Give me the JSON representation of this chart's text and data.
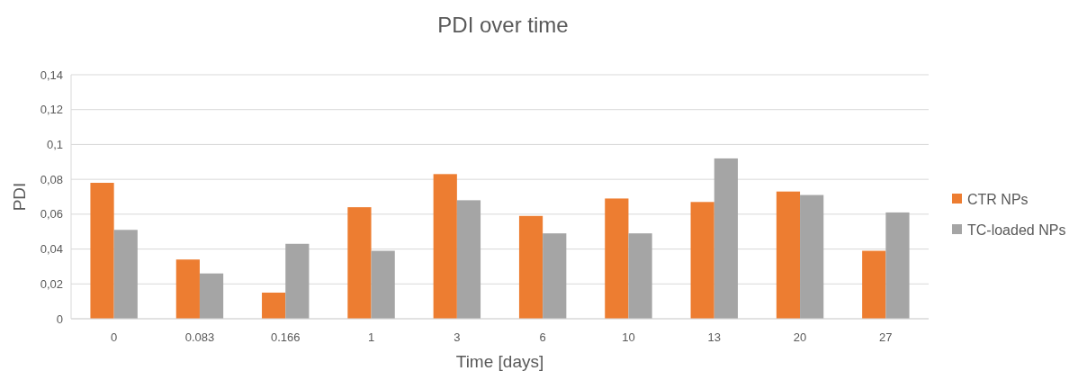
{
  "chart_data": {
    "type": "bar",
    "title": "PDI over time",
    "xlabel": "Time [days]",
    "ylabel": "PDI",
    "categories": [
      "0",
      "0.083",
      "0.166",
      "1",
      "3",
      "6",
      "10",
      "13",
      "20",
      "27"
    ],
    "series": [
      {
        "name": "CTR NPs",
        "color": "#ed7d31",
        "values": [
          0.078,
          0.034,
          0.015,
          0.064,
          0.083,
          0.059,
          0.069,
          0.067,
          0.073,
          0.039
        ]
      },
      {
        "name": "TC-loaded NPs",
        "color": "#a5a5a5",
        "values": [
          0.051,
          0.026,
          0.043,
          0.039,
          0.068,
          0.049,
          0.049,
          0.092,
          0.071,
          0.061
        ]
      }
    ],
    "ylim": [
      0,
      0.14
    ],
    "yticks": [
      0,
      {
        "value": 0.02,
        "label": "0,02"
      },
      {
        "value": 0.04,
        "label": "0,04"
      },
      {
        "value": 0.06,
        "label": "0,06"
      },
      {
        "value": 0.08,
        "label": "0,08"
      },
      {
        "value": 0.1,
        "label": "0,1"
      },
      {
        "value": 0.12,
        "label": "0,12"
      },
      {
        "value": 0.14,
        "label": "0,14"
      }
    ],
    "grid": "y",
    "legend": "right"
  }
}
